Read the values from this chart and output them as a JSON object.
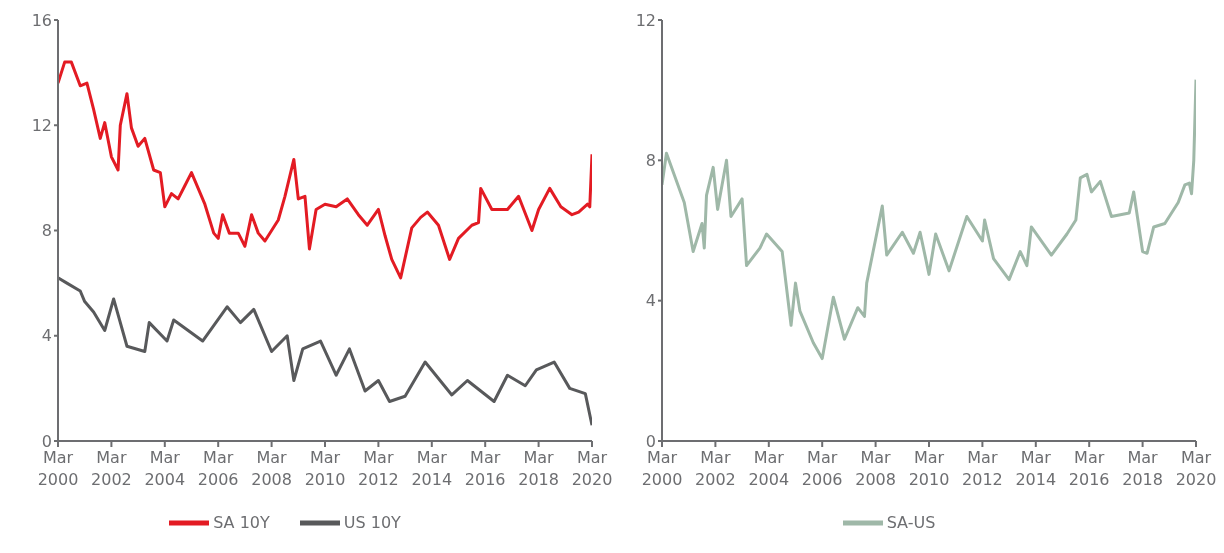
{
  "chart_data": [
    {
      "type": "line",
      "legend": "bottom",
      "grid": false,
      "line_style": "solid",
      "marker": "none",
      "xlim": [
        "2000-03",
        "2020-03"
      ],
      "xticks": [
        {
          "value": "2000-03",
          "label": "Mar 2000"
        },
        {
          "value": "2002-03",
          "label": "Mar 2002"
        },
        {
          "value": "2004-03",
          "label": "Mar 2004"
        },
        {
          "value": "2006-03",
          "label": "Mar 2006"
        },
        {
          "value": "2008-03",
          "label": "Mar 2008"
        },
        {
          "value": "2010-03",
          "label": "Mar 2010"
        },
        {
          "value": "2012-03",
          "label": "Mar 2012"
        },
        {
          "value": "2014-03",
          "label": "Mar 2014"
        },
        {
          "value": "2016-03",
          "label": "Mar 2016"
        },
        {
          "value": "2018-03",
          "label": "Mar 2018"
        },
        {
          "value": "2020-03",
          "label": "Mar 2020"
        }
      ],
      "ylim": [
        0,
        16
      ],
      "yticks": [
        0,
        4,
        8,
        12,
        16
      ],
      "series": [
        {
          "name": "SA 10Y",
          "color": "#e31b23",
          "x": [
            "2000-03",
            "2000-06",
            "2000-09",
            "2001-01",
            "2001-04",
            "2001-07",
            "2001-10",
            "2001-12",
            "2002-03",
            "2002-06",
            "2002-07",
            "2002-10",
            "2002-12",
            "2003-03",
            "2003-06",
            "2003-10",
            "2004-01",
            "2004-03",
            "2004-06",
            "2004-09",
            "2004-12",
            "2005-03",
            "2005-09",
            "2006-01",
            "2006-03",
            "2006-05",
            "2006-08",
            "2006-12",
            "2007-03",
            "2007-06",
            "2007-09",
            "2007-12",
            "2008-03",
            "2008-06",
            "2008-09",
            "2009-01",
            "2009-03",
            "2009-06",
            "2009-08",
            "2009-11",
            "2010-03",
            "2010-08",
            "2011-01",
            "2011-06",
            "2011-10",
            "2012-03",
            "2012-06",
            "2012-09",
            "2013-01",
            "2013-06",
            "2013-10",
            "2014-01",
            "2014-06",
            "2014-11",
            "2015-03",
            "2015-09",
            "2015-12",
            "2016-01",
            "2016-06",
            "2017-01",
            "2017-06",
            "2017-12",
            "2018-03",
            "2018-08",
            "2019-01",
            "2019-06",
            "2019-09",
            "2020-01",
            "2020-02",
            "2020-03"
          ],
          "values": [
            13.6,
            14.4,
            14.4,
            13.5,
            13.6,
            12.6,
            11.5,
            12.1,
            10.8,
            10.3,
            12.0,
            13.2,
            11.9,
            11.2,
            11.5,
            10.3,
            10.2,
            8.9,
            9.4,
            9.2,
            9.7,
            10.2,
            9.0,
            7.9,
            7.7,
            8.6,
            7.9,
            7.9,
            7.4,
            8.6,
            7.9,
            7.6,
            8.0,
            8.4,
            9.3,
            10.7,
            9.2,
            9.3,
            7.3,
            8.8,
            9.0,
            8.9,
            9.2,
            8.6,
            8.2,
            8.8,
            7.8,
            6.9,
            6.2,
            8.1,
            8.5,
            8.7,
            8.2,
            6.9,
            7.7,
            8.2,
            8.3,
            9.6,
            8.8,
            8.8,
            9.3,
            8.0,
            8.8,
            9.6,
            8.9,
            8.6,
            8.7,
            9.0,
            8.9,
            10.9
          ]
        },
        {
          "name": "US 10Y",
          "color": "#58595b",
          "x": [
            "2000-03",
            "2000-07",
            "2001-01",
            "2001-03",
            "2001-07",
            "2001-12",
            "2002-04",
            "2002-10",
            "2003-06",
            "2003-08",
            "2004-04",
            "2004-07",
            "2005-08",
            "2006-07",
            "2007-01",
            "2007-07",
            "2008-03",
            "2008-10",
            "2009-01",
            "2009-05",
            "2010-01",
            "2010-08",
            "2011-02",
            "2011-09",
            "2012-03",
            "2012-08",
            "2013-03",
            "2013-12",
            "2014-12",
            "2015-07",
            "2016-07",
            "2017-01",
            "2017-09",
            "2018-02",
            "2018-10",
            "2019-05",
            "2019-12",
            "2020-03"
          ],
          "values": [
            6.2,
            6.0,
            5.7,
            5.3,
            4.9,
            4.2,
            5.4,
            3.6,
            3.4,
            4.5,
            3.8,
            4.6,
            3.8,
            5.1,
            4.5,
            5.0,
            3.4,
            4.0,
            2.3,
            3.5,
            3.8,
            2.5,
            3.5,
            1.9,
            2.3,
            1.5,
            1.7,
            3.0,
            1.75,
            2.3,
            1.5,
            2.5,
            2.1,
            2.7,
            3.0,
            2.0,
            1.8,
            0.6
          ]
        }
      ]
    },
    {
      "type": "line",
      "legend": "bottom",
      "grid": false,
      "line_style": "solid",
      "marker": "none",
      "xlim": [
        "2000-03",
        "2020-03"
      ],
      "xticks": [
        {
          "value": "2000-03",
          "label": "Mar 2000"
        },
        {
          "value": "2002-03",
          "label": "Mar 2002"
        },
        {
          "value": "2004-03",
          "label": "Mar 2004"
        },
        {
          "value": "2006-03",
          "label": "Mar 2006"
        },
        {
          "value": "2008-03",
          "label": "Mar 2008"
        },
        {
          "value": "2010-03",
          "label": "Mar 2010"
        },
        {
          "value": "2012-03",
          "label": "Mar 2012"
        },
        {
          "value": "2014-03",
          "label": "Mar 2014"
        },
        {
          "value": "2016-03",
          "label": "Mar 2016"
        },
        {
          "value": "2018-03",
          "label": "Mar 2018"
        },
        {
          "value": "2020-03",
          "label": "Mar 2020"
        }
      ],
      "ylim": [
        0,
        12
      ],
      "yticks": [
        0,
        4,
        8,
        12
      ],
      "series": [
        {
          "name": "SA-US",
          "color": "#9fb8a8",
          "x": [
            "2000-03",
            "2000-05",
            "2001-01",
            "2001-05",
            "2001-09",
            "2001-10",
            "2001-11",
            "2002-02",
            "2002-04",
            "2002-08",
            "2002-10",
            "2003-03",
            "2003-05",
            "2003-11",
            "2004-02",
            "2004-09",
            "2005-01",
            "2005-03",
            "2005-05",
            "2005-11",
            "2006-03",
            "2006-08",
            "2007-01",
            "2007-07",
            "2007-10",
            "2007-11",
            "2008-03",
            "2008-06",
            "2008-08",
            "2009-03",
            "2009-08",
            "2009-11",
            "2010-03",
            "2010-06",
            "2010-12",
            "2011-08",
            "2012-03",
            "2012-04",
            "2012-08",
            "2013-03",
            "2013-08",
            "2013-11",
            "2014-01",
            "2014-10",
            "2015-05",
            "2015-09",
            "2015-11",
            "2016-02",
            "2016-04",
            "2016-08",
            "2017-01",
            "2017-09",
            "2017-11",
            "2018-03",
            "2018-05",
            "2018-08",
            "2019-01",
            "2019-07",
            "2019-10",
            "2019-12",
            "2020-01",
            "2020-02",
            "2020-03"
          ],
          "values": [
            7.3,
            8.2,
            6.8,
            5.4,
            6.2,
            5.5,
            7.0,
            7.8,
            6.6,
            8.0,
            6.4,
            6.9,
            5.0,
            5.5,
            5.9,
            5.4,
            3.3,
            4.5,
            3.7,
            2.8,
            2.35,
            4.1,
            2.9,
            3.8,
            3.55,
            4.5,
            5.75,
            6.7,
            5.3,
            5.95,
            5.35,
            5.95,
            4.75,
            5.9,
            4.85,
            6.4,
            5.7,
            6.3,
            5.2,
            4.6,
            5.4,
            5.0,
            6.1,
            5.3,
            5.9,
            6.3,
            7.5,
            7.6,
            7.1,
            7.4,
            6.4,
            6.5,
            7.1,
            5.4,
            5.35,
            6.1,
            6.2,
            6.8,
            7.3,
            7.35,
            7.05,
            8.0,
            10.3
          ]
        }
      ]
    }
  ]
}
